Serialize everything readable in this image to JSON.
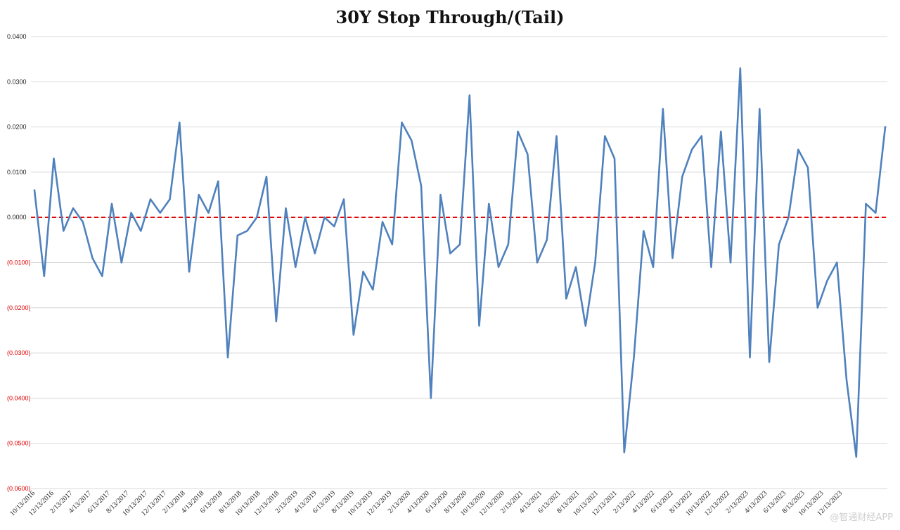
{
  "chart_data": {
    "type": "line",
    "title": "30Y Stop Through/(Tail)",
    "xlabel": "",
    "ylabel": "",
    "ylim": [
      -0.06,
      0.04
    ],
    "grid": true,
    "legend": "none",
    "line_color": "#4f81bd",
    "baseline_color": "#e00000",
    "negative_label_color": "#e00000",
    "positive_label_color": "#222222",
    "y_ticks": [
      0.04,
      0.03,
      0.02,
      0.01,
      0.0,
      -0.01,
      -0.02,
      -0.03,
      -0.04,
      -0.05,
      -0.06
    ],
    "y_tick_labels": [
      "0.0400",
      "0.0300",
      "0.0200",
      "0.0100",
      "0.0000",
      "(0.0100)",
      "(0.0200)",
      "(0.0300)",
      "(0.0400)",
      "(0.0500)",
      "(0.0600)"
    ],
    "x_tick_labels": [
      "10/13/2016",
      "12/13/2016",
      "2/13/2017",
      "4/13/2017",
      "6/13/2017",
      "8/13/2017",
      "10/13/2017",
      "12/13/2017",
      "2/13/2018",
      "4/13/2018",
      "6/13/2018",
      "8/13/2018",
      "10/13/2018",
      "12/13/2018",
      "2/13/2019",
      "4/13/2019",
      "6/13/2019",
      "8/13/2019",
      "10/13/2019",
      "12/13/2019",
      "2/13/2020",
      "4/13/2020",
      "6/13/2020",
      "8/13/2020",
      "10/13/2020",
      "12/13/2020",
      "2/13/2021",
      "4/13/2021",
      "6/13/2021",
      "8/13/2021",
      "10/13/2021",
      "12/13/2021",
      "2/13/2022",
      "4/13/2022",
      "6/13/2022",
      "8/13/2022",
      "10/13/2022",
      "12/13/2022",
      "2/13/2023",
      "4/13/2023",
      "6/13/2023",
      "8/13/2023",
      "10/13/2023",
      "12/13/2023"
    ],
    "series": [
      {
        "values": [
          0.006,
          -0.013,
          0.013,
          -0.003,
          0.002,
          -0.001,
          -0.009,
          -0.013,
          0.003,
          -0.01,
          0.001,
          -0.003,
          0.004,
          0.001,
          0.004,
          0.021,
          -0.012,
          0.005,
          0.001,
          0.008,
          -0.031,
          -0.004,
          -0.003,
          0.0,
          0.009,
          -0.023,
          0.002,
          -0.011,
          0.0,
          -0.008,
          0.0,
          -0.002,
          0.004,
          -0.026,
          -0.012,
          -0.016,
          -0.001,
          -0.006,
          0.021,
          0.017,
          0.007,
          -0.04,
          0.005,
          -0.008,
          -0.006,
          0.027,
          -0.024,
          0.003,
          -0.011,
          -0.006,
          0.019,
          0.014,
          -0.01,
          -0.005,
          0.018,
          -0.018,
          -0.011,
          -0.024,
          -0.01,
          0.018,
          0.013,
          -0.052,
          -0.031,
          -0.003,
          -0.011,
          0.024,
          -0.009,
          0.009,
          0.015,
          0.018,
          -0.011,
          0.019,
          -0.01,
          0.033,
          -0.031,
          0.024,
          -0.032,
          -0.006,
          0.0,
          0.015,
          0.011,
          -0.02,
          -0.014,
          -0.01,
          -0.036,
          -0.053,
          0.003,
          0.001,
          0.02
        ]
      }
    ]
  },
  "watermark": "@智通财经APP"
}
